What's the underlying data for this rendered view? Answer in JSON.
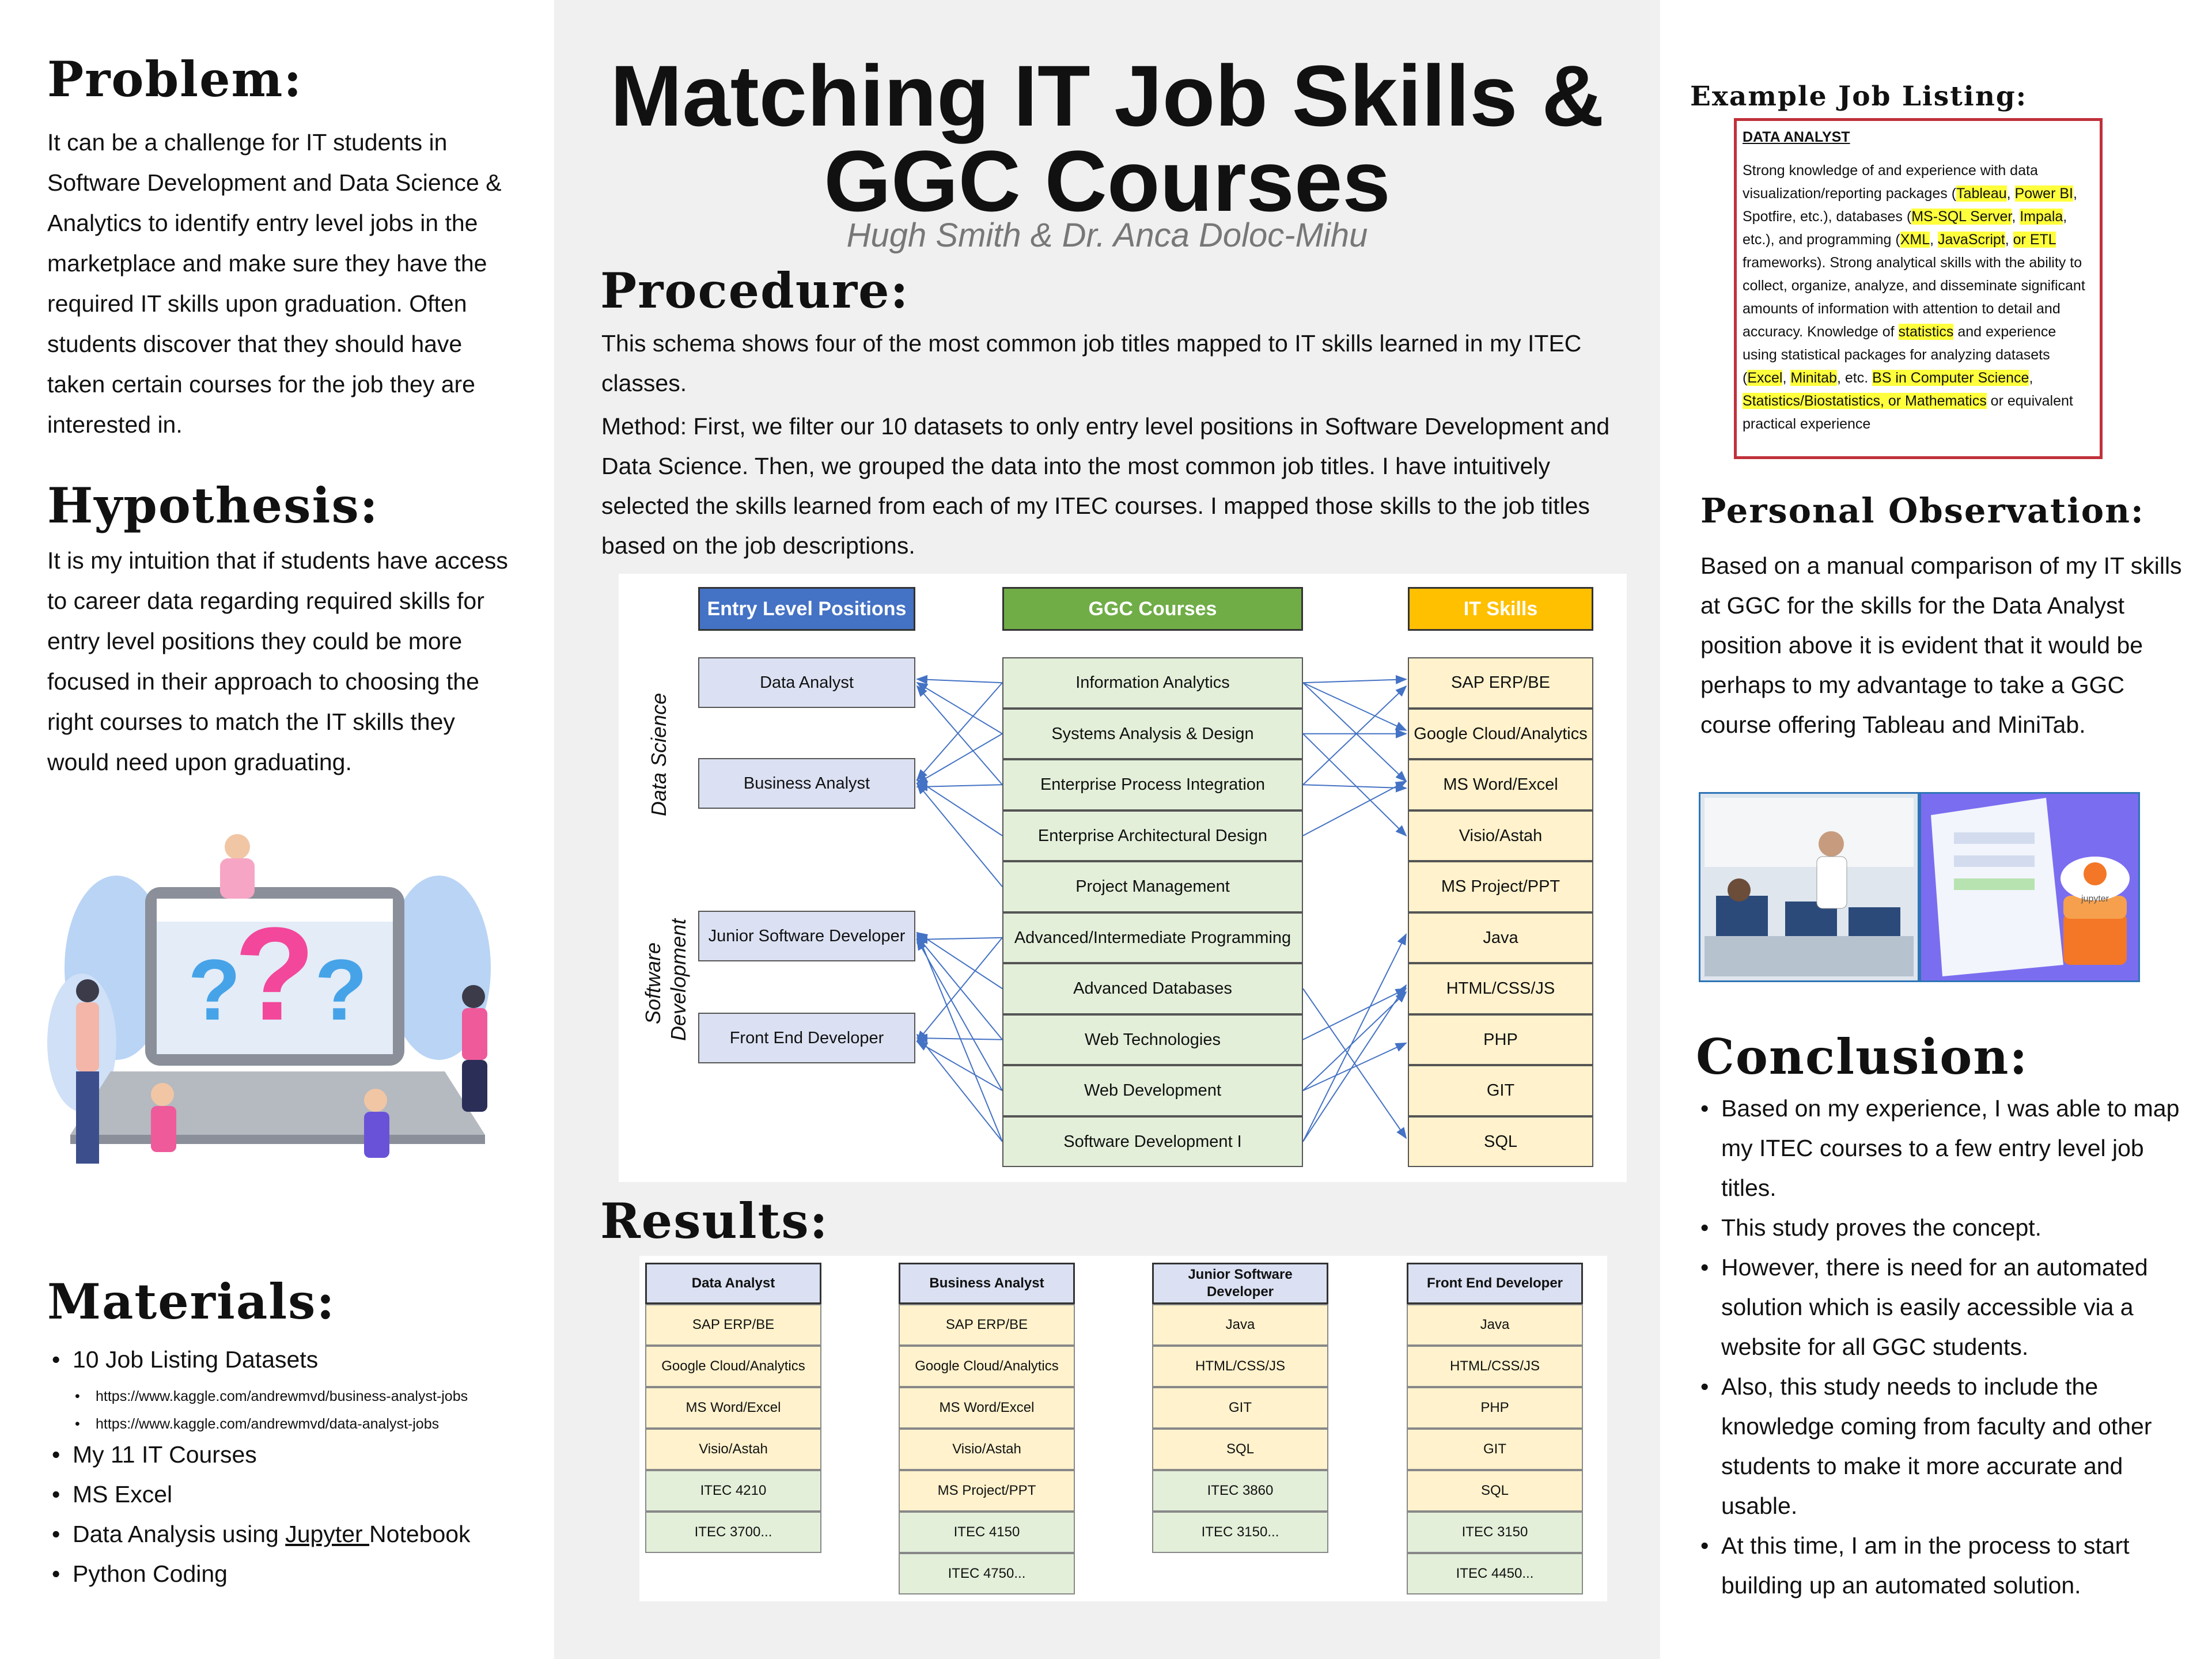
{
  "title": {
    "line1": "Matching IT Job Skills &",
    "line2": "GGC Courses",
    "authors": "Hugh Smith & Dr. Anca Doloc-Mihu"
  },
  "problem": {
    "heading": "Problem:",
    "text": "It can be a challenge for IT students in Software Development and Data Science & Analytics to identify entry level jobs in the marketplace and make sure  they have the required IT skills upon graduation.  Often students discover that they should have taken certain courses for the job they are interested in."
  },
  "hypothesis": {
    "heading": "Hypothesis:",
    "text": "It is my intuition that if students have access to career data regarding required skills for entry level positions they could be more focused in their approach to choosing the right courses to match the IT skills they would need upon graduating."
  },
  "materials": {
    "heading": "Materials:",
    "items": [
      "10 Job Listing Datasets",
      "My 11 IT Courses",
      "MS Excel",
      "Data Analysis using ",
      "Python Coding"
    ],
    "links": [
      "https://www.kaggle.com/andrewmvd/business-analyst-jobs",
      "https://www.kaggle.com/andrewmvd/data-analyst-jobs"
    ],
    "jupyter_link": "Jupyter ",
    "jupyter_tail": "Notebook"
  },
  "procedure": {
    "heading": "Procedure:",
    "p1": "This schema shows four of the most common job titles mapped to IT skills learned in my ITEC classes.",
    "p2": "Method: First, we filter our 10 datasets to only entry level positions in Software Development and Data Science. Then, we grouped the data into the most common job titles. I have intuitively selected the skills learned from each of my ITEC courses.  I mapped those skills to the job titles based on the job descriptions."
  },
  "diagram": {
    "headers": {
      "positions": "Entry Level Positions",
      "courses": "GGC Courses",
      "skills": "IT Skills"
    },
    "header_colors": {
      "positions": "#4472c4",
      "courses": "#70ad47",
      "skills": "#ffc000"
    },
    "group_labels": {
      "data_science": "Data Science",
      "software1": "Software",
      "software2": "Development"
    },
    "positions": [
      "Data Analyst",
      "Business Analyst",
      "Junior Software Developer",
      "Front End Developer"
    ],
    "courses": [
      "Information Analytics",
      "Systems Analysis & Design",
      "Enterprise Process Integration",
      "Enterprise Architectural Design",
      "Project Management",
      "Advanced/Intermediate Programming",
      "Advanced Databases",
      "Web Technologies",
      "Web Development",
      "Software Development I"
    ],
    "skills": [
      "SAP ERP/BE",
      "Google Cloud/Analytics",
      "MS Word/Excel",
      "Visio/Astah",
      "MS Project/PPT",
      "Java",
      "HTML/CSS/JS",
      "PHP",
      "GIT",
      "SQL"
    ]
  },
  "results": {
    "heading": "Results:",
    "tables": [
      {
        "head": "Data Analyst",
        "skills": [
          "SAP ERP/BE",
          "Google Cloud/Analytics",
          "MS Word/Excel",
          "Visio/Astah"
        ],
        "courses": [
          "ITEC 4210",
          "ITEC 3700..."
        ]
      },
      {
        "head": "Business Analyst",
        "skills": [
          "SAP ERP/BE",
          "Google Cloud/Analytics",
          "MS Word/Excel",
          "Visio/Astah",
          "MS Project/PPT"
        ],
        "courses": [
          "ITEC 4150",
          "ITEC 4750..."
        ]
      },
      {
        "head": "Junior Software Developer",
        "skills": [
          "Java",
          "HTML/CSS/JS",
          "GIT",
          "SQL"
        ],
        "courses": [
          "ITEC 3860",
          "ITEC 3150..."
        ]
      },
      {
        "head": "Front End Developer",
        "skills": [
          "Java",
          "HTML/CSS/JS",
          "PHP",
          "GIT",
          "SQL"
        ],
        "courses": [
          "ITEC 3150",
          "ITEC 4450..."
        ]
      }
    ]
  },
  "job_listing": {
    "heading": "Example Job Listing:",
    "title": "DATA ANALYST",
    "segments": [
      {
        "t": "Strong knowledge of and experience with data visualization/reporting packages (",
        "h": false
      },
      {
        "t": "Tableau",
        "h": true
      },
      {
        "t": ", ",
        "h": false
      },
      {
        "t": "Power BI",
        "h": true
      },
      {
        "t": ", Spotfire, etc.), databases (",
        "h": false
      },
      {
        "t": "MS-SQL Server",
        "h": true
      },
      {
        "t": ", ",
        "h": false
      },
      {
        "t": "Impala",
        "h": true
      },
      {
        "t": ", etc.), and programming (",
        "h": false
      },
      {
        "t": "XML",
        "h": true
      },
      {
        "t": ", ",
        "h": false
      },
      {
        "t": "JavaScript",
        "h": true
      },
      {
        "t": ", ",
        "h": false
      },
      {
        "t": "or ETL",
        "h": true
      },
      {
        "t": " frameworks).  Strong analytical skills with the ability to collect, organize, analyze, and disseminate significant amounts of information with attention to detail and accuracy.  Knowledge of ",
        "h": false
      },
      {
        "t": "statistics",
        "h": true
      },
      {
        "t": " and experience using statistical packages for analyzing datasets (",
        "h": false
      },
      {
        "t": "Excel",
        "h": true
      },
      {
        "t": ", ",
        "h": false
      },
      {
        "t": "Minitab",
        "h": true
      },
      {
        "t": ", etc.  ",
        "h": false
      },
      {
        "t": "BS in Computer Science",
        "h": true
      },
      {
        "t": ", ",
        "h": false
      },
      {
        "t": "Statistics/Biostatistics, or Mathematics",
        "h": true
      },
      {
        "t": " or equivalent practical experience",
        "h": false
      }
    ]
  },
  "observation": {
    "heading": "Personal Observation:",
    "text": "Based on a manual comparison of my IT skills at GGC for the skills for the Data Analyst position above it is evident that it would be perhaps to my advantage to take a GGC course offering Tableau and MiniTab."
  },
  "conclusion": {
    "heading": "Conclusion:",
    "items": [
      "Based on my experience, I was able to map my ITEC courses to a few entry level job titles.",
      "This study proves the concept.",
      "However, there is need for an automated solution which is easily accessible via a website for all GGC students.",
      "Also, this study needs to include the knowledge coming from faculty and other students to make it more accurate and usable.",
      "At this time, I am in the process to start building up an automated solution."
    ]
  },
  "jupyter_logo_text": "jupyter"
}
